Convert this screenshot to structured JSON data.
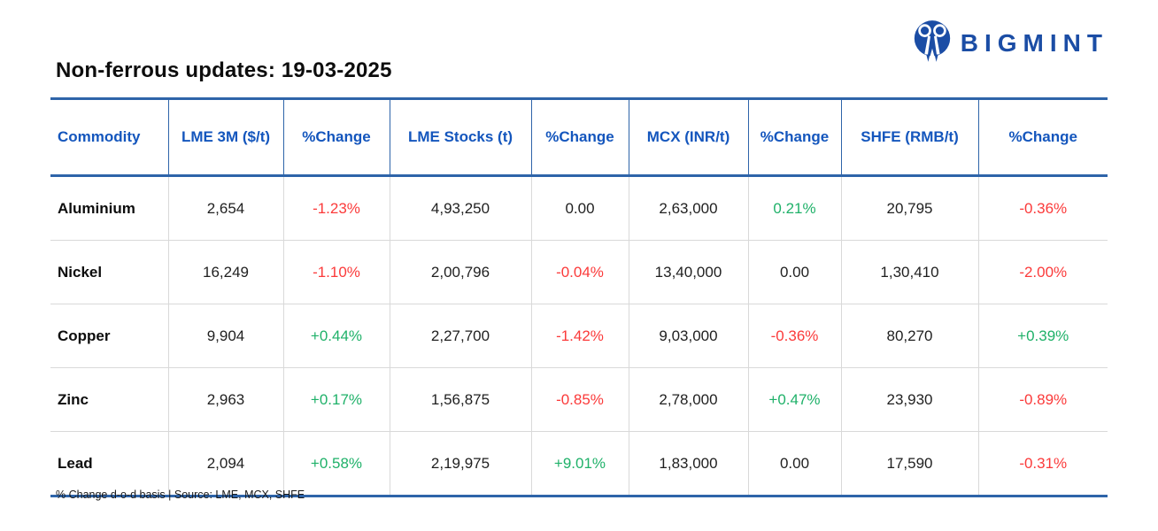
{
  "brand": {
    "text": "BIGMINT",
    "icon": "bigmint-people-icon",
    "color": "#1b4da5"
  },
  "colors": {
    "header_blue": "#1456bd",
    "border_blue": "#2e64a9",
    "divider_gray": "#d9d9d9",
    "positive_green": "#1fb169",
    "negative_red": "#fb3a3a"
  },
  "chart_data": {
    "type": "table",
    "title": "Non-ferrous updates: 19-03-2025",
    "footnote": "% Change d-o-d basis | Source: LME, MCX, SHFE",
    "columns": [
      "Commodity",
      "LME 3M ($/t)",
      "%Change",
      "LME Stocks (t)",
      "%Change",
      "MCX (INR/t)",
      "%Change",
      "SHFE (RMB/t)",
      "%Change"
    ],
    "rows": [
      {
        "commodity": "Aluminium",
        "cells": [
          {
            "v": "2,654",
            "c": null
          },
          {
            "v": "-1.23%",
            "c": "neg"
          },
          {
            "v": "4,93,250",
            "c": null
          },
          {
            "v": "0.00",
            "c": null
          },
          {
            "v": "2,63,000",
            "c": null
          },
          {
            "v": "0.21%",
            "c": "pos"
          },
          {
            "v": "20,795",
            "c": null
          },
          {
            "v": "-0.36%",
            "c": "neg"
          }
        ]
      },
      {
        "commodity": "Nickel",
        "cells": [
          {
            "v": "16,249",
            "c": null
          },
          {
            "v": "-1.10%",
            "c": "neg"
          },
          {
            "v": "2,00,796",
            "c": null
          },
          {
            "v": "-0.04%",
            "c": "neg"
          },
          {
            "v": "13,40,000",
            "c": null
          },
          {
            "v": "0.00",
            "c": null
          },
          {
            "v": "1,30,410",
            "c": null
          },
          {
            "v": "-2.00%",
            "c": "neg"
          }
        ]
      },
      {
        "commodity": "Copper",
        "cells": [
          {
            "v": "9,904",
            "c": null
          },
          {
            "v": "+0.44%",
            "c": "pos"
          },
          {
            "v": "2,27,700",
            "c": null
          },
          {
            "v": "-1.42%",
            "c": "neg"
          },
          {
            "v": "9,03,000",
            "c": null
          },
          {
            "v": "-0.36%",
            "c": "neg"
          },
          {
            "v": "80,270",
            "c": null
          },
          {
            "v": "+0.39%",
            "c": "pos"
          }
        ]
      },
      {
        "commodity": "Zinc",
        "cells": [
          {
            "v": "2,963",
            "c": null
          },
          {
            "v": "+0.17%",
            "c": "pos"
          },
          {
            "v": "1,56,875",
            "c": null
          },
          {
            "v": "-0.85%",
            "c": "neg"
          },
          {
            "v": "2,78,000",
            "c": null
          },
          {
            "v": "+0.47%",
            "c": "pos"
          },
          {
            "v": "23,930",
            "c": null
          },
          {
            "v": "-0.89%",
            "c": "neg"
          }
        ]
      },
      {
        "commodity": "Lead",
        "cells": [
          {
            "v": "2,094",
            "c": null
          },
          {
            "v": "+0.58%",
            "c": "pos"
          },
          {
            "v": "2,19,975",
            "c": null
          },
          {
            "v": "+9.01%",
            "c": "pos"
          },
          {
            "v": "1,83,000",
            "c": null
          },
          {
            "v": "0.00",
            "c": null
          },
          {
            "v": "17,590",
            "c": null
          },
          {
            "v": "-0.31%",
            "c": "neg"
          }
        ]
      }
    ]
  }
}
